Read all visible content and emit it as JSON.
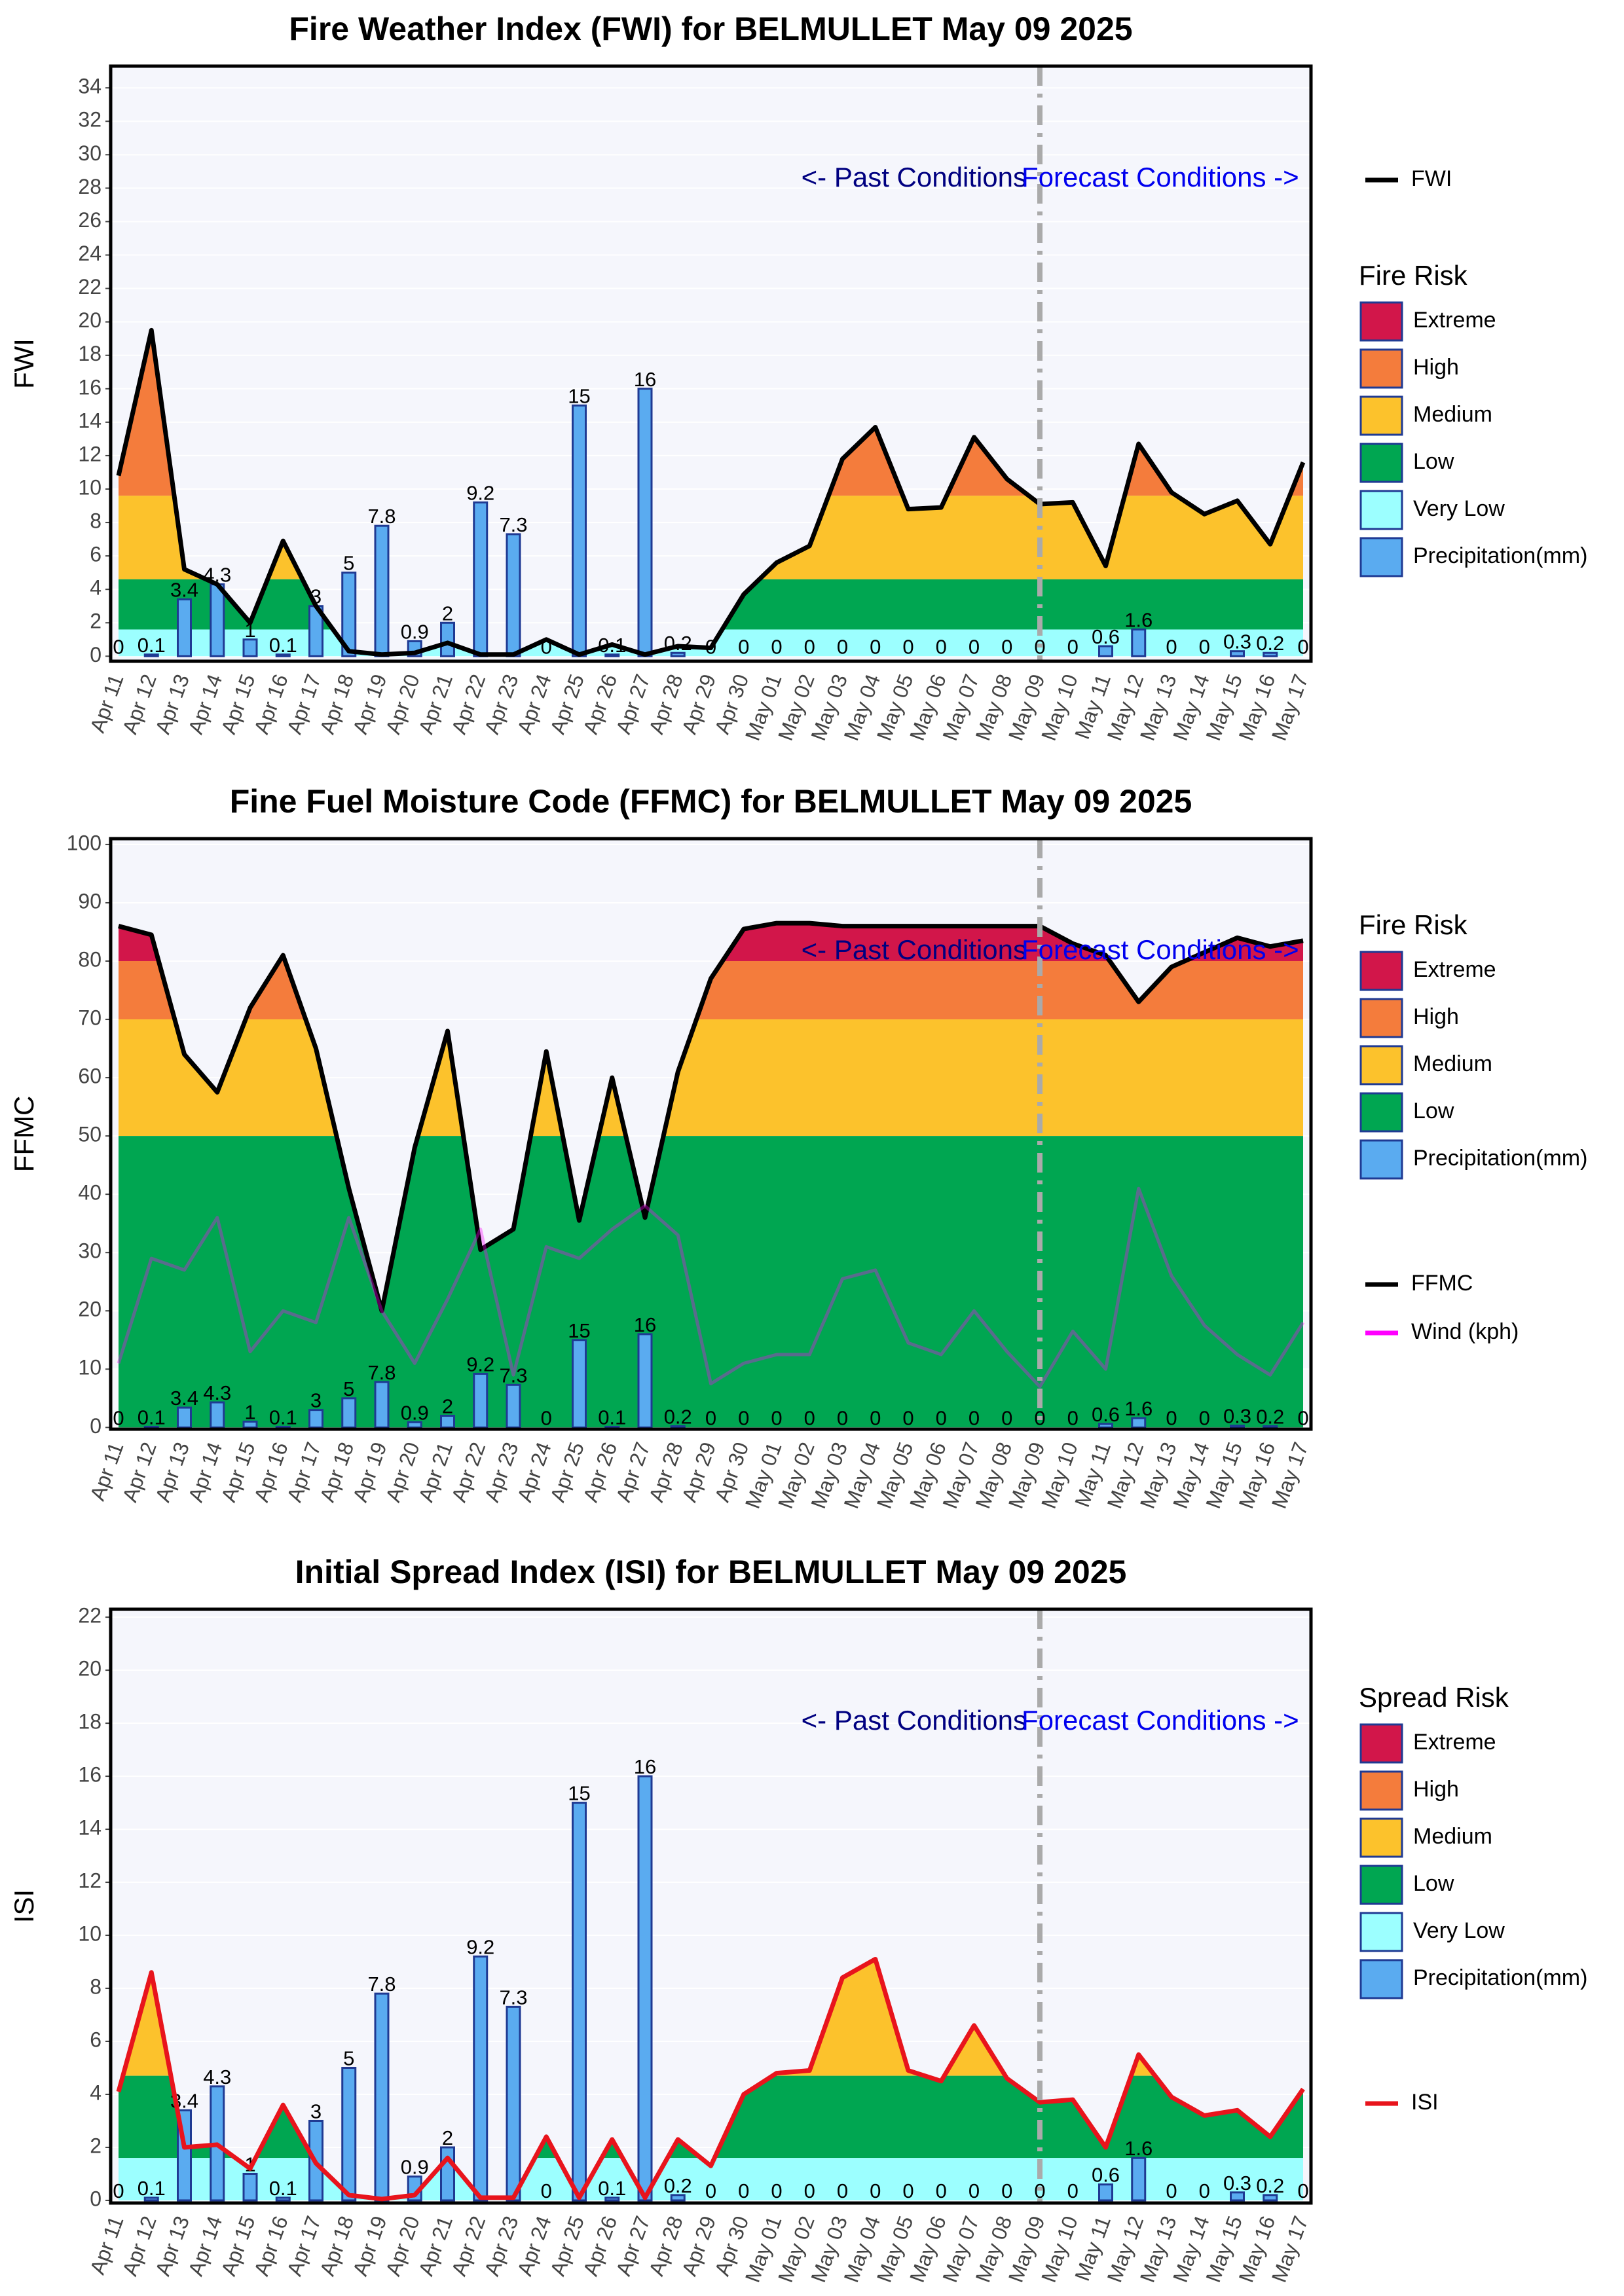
{
  "chart_data": [
    {
      "type": "combo",
      "title": "Fire Weather Index (FWI) for BELMULLET May 09 2025",
      "y_label": "FWI",
      "categories": [
        "Apr 11",
        "Apr 12",
        "Apr 13",
        "Apr 14",
        "Apr 15",
        "Apr 16",
        "Apr 17",
        "Apr 18",
        "Apr 19",
        "Apr 20",
        "Apr 21",
        "Apr 22",
        "Apr 23",
        "Apr 24",
        "Apr 25",
        "Apr 26",
        "Apr 27",
        "Apr 28",
        "Apr 29",
        "Apr 30",
        "May 01",
        "May 02",
        "May 03",
        "May 04",
        "May 05",
        "May 06",
        "May 07",
        "May 08",
        "May 09",
        "May 10",
        "May 11",
        "May 12",
        "May 13",
        "May 14",
        "May 15",
        "May 16",
        "May 17"
      ],
      "ylim": [
        -0.3,
        35.3
      ],
      "yticks": [
        0,
        2,
        4,
        6,
        8,
        10,
        12,
        14,
        16,
        18,
        20,
        22,
        24,
        26,
        28,
        30,
        32,
        34
      ],
      "grid": true,
      "background": "#f5f6fc",
      "forecast_start": "May 09",
      "annotations": [
        {
          "text": "<- Past Conditions",
          "color": "#000080"
        },
        {
          "text": "Forecast Conditions ->",
          "color": "#0000ee"
        }
      ],
      "legend_title": "Fire Risk",
      "bands": [
        {
          "name": "Extreme",
          "color": "#d2164a",
          "from": 23
        },
        {
          "name": "High",
          "color": "#f47c3c",
          "from": 9.6
        },
        {
          "name": "Medium",
          "color": "#fcc22c",
          "from": 4.6
        },
        {
          "name": "Low",
          "color": "#00a651",
          "from": 1.6
        },
        {
          "name": "Very Low",
          "color": "#9cffff",
          "from": 0
        }
      ],
      "series": [
        {
          "name": "FWI",
          "kind": "index-line",
          "color": "#000000",
          "values": [
            10.8,
            19.5,
            5.2,
            4.3,
            2.0,
            6.9,
            3.0,
            0.3,
            0.1,
            0.2,
            0.8,
            0.1,
            0.1,
            1.0,
            0.1,
            0.7,
            0.1,
            0.6,
            0.5,
            3.7,
            5.6,
            6.6,
            11.8,
            13.7,
            8.8,
            8.9,
            13.1,
            10.6,
            9.1,
            9.2,
            5.4,
            12.7,
            9.8,
            8.5,
            9.3,
            6.7,
            11.6
          ]
        },
        {
          "name": "Precipitation(mm)",
          "kind": "bar",
          "color": "#5aabf0",
          "edgecolor": "#1f3a93",
          "values": [
            0,
            0.1,
            3.4,
            4.3,
            1,
            0.1,
            3,
            5,
            7.8,
            0.9,
            2,
            9.2,
            7.3,
            0,
            15,
            0.1,
            16,
            0.2,
            0,
            0,
            0,
            0,
            0,
            0,
            0,
            0,
            0,
            0,
            0,
            0,
            0.6,
            1.6,
            0,
            0,
            0.3,
            0.2,
            0
          ]
        }
      ]
    },
    {
      "type": "combo",
      "title": "Fine Fuel Moisture Code (FFMC) for BELMULLET May 09 2025",
      "y_label": "FFMC",
      "categories": [
        "Apr 11",
        "Apr 12",
        "Apr 13",
        "Apr 14",
        "Apr 15",
        "Apr 16",
        "Apr 17",
        "Apr 18",
        "Apr 19",
        "Apr 20",
        "Apr 21",
        "Apr 22",
        "Apr 23",
        "Apr 24",
        "Apr 25",
        "Apr 26",
        "Apr 27",
        "Apr 28",
        "Apr 29",
        "Apr 30",
        "May 01",
        "May 02",
        "May 03",
        "May 04",
        "May 05",
        "May 06",
        "May 07",
        "May 08",
        "May 09",
        "May 10",
        "May 11",
        "May 12",
        "May 13",
        "May 14",
        "May 15",
        "May 16",
        "May 17"
      ],
      "ylim": [
        -0.3,
        101
      ],
      "yticks": [
        0,
        10,
        20,
        30,
        40,
        50,
        60,
        70,
        80,
        90,
        100
      ],
      "grid": true,
      "background": "#f5f6fc",
      "forecast_start": "May 09",
      "annotations": [
        {
          "text": "<- Past Conditions",
          "color": "#000080"
        },
        {
          "text": "Forecast Conditions ->",
          "color": "#0000ee"
        }
      ],
      "legend_title": "Fire Risk",
      "bands": [
        {
          "name": "Extreme",
          "color": "#d2164a",
          "from": 80
        },
        {
          "name": "High",
          "color": "#f47c3c",
          "from": 70
        },
        {
          "name": "Medium",
          "color": "#fcc22c",
          "from": 50
        },
        {
          "name": "Low",
          "color": "#00a651",
          "from": 0
        }
      ],
      "series": [
        {
          "name": "FFMC",
          "kind": "index-line",
          "color": "#000000",
          "values": [
            86,
            84.5,
            64,
            57.5,
            72,
            81,
            65,
            41,
            20,
            48,
            68,
            30.5,
            34,
            64.5,
            35.5,
            60,
            36,
            61,
            77,
            85.5,
            86.5,
            86.5,
            86,
            86,
            86,
            86,
            86,
            86,
            86,
            83,
            81,
            73,
            79,
            81.5,
            84,
            82.5,
            83.5
          ]
        },
        {
          "name": "Wind (kph)",
          "kind": "line",
          "color": "#ff00ff",
          "opacity": 0.35,
          "values": [
            11,
            29,
            27,
            36,
            13,
            20,
            18,
            36,
            20,
            11,
            22,
            34,
            9,
            31,
            29,
            34,
            38,
            33,
            7.5,
            11,
            12.5,
            12.5,
            25.5,
            27,
            14.5,
            12.5,
            20,
            13,
            7,
            16.5,
            10,
            41,
            26,
            17.5,
            12.5,
            9,
            18
          ]
        },
        {
          "name": "Precipitation(mm)",
          "kind": "bar",
          "color": "#5aabf0",
          "edgecolor": "#1f3a93",
          "values": [
            0,
            0.1,
            3.4,
            4.3,
            1,
            0.1,
            3,
            5,
            7.8,
            0.9,
            2,
            9.2,
            7.3,
            0,
            15,
            0.1,
            16,
            0.2,
            0,
            0,
            0,
            0,
            0,
            0,
            0,
            0,
            0,
            0,
            0,
            0,
            0.6,
            1.6,
            0,
            0,
            0.3,
            0.2,
            0
          ]
        }
      ]
    },
    {
      "type": "combo",
      "title": "Initial Spread Index (ISI) for BELMULLET May 09 2025",
      "y_label": "ISI",
      "categories": [
        "Apr 11",
        "Apr 12",
        "Apr 13",
        "Apr 14",
        "Apr 15",
        "Apr 16",
        "Apr 17",
        "Apr 18",
        "Apr 19",
        "Apr 20",
        "Apr 21",
        "Apr 22",
        "Apr 23",
        "Apr 24",
        "Apr 25",
        "Apr 26",
        "Apr 27",
        "Apr 28",
        "Apr 29",
        "Apr 30",
        "May 01",
        "May 02",
        "May 03",
        "May 04",
        "May 05",
        "May 06",
        "May 07",
        "May 08",
        "May 09",
        "May 10",
        "May 11",
        "May 12",
        "May 13",
        "May 14",
        "May 15",
        "May 16",
        "May 17"
      ],
      "ylim": [
        -0.1,
        22.3
      ],
      "yticks": [
        0,
        2,
        4,
        6,
        8,
        10,
        12,
        14,
        16,
        18,
        20,
        22
      ],
      "grid": true,
      "background": "#f5f6fc",
      "forecast_start": "May 09",
      "annotations": [
        {
          "text": "<- Past Conditions",
          "color": "#000080"
        },
        {
          "text": "Forecast Conditions ->",
          "color": "#0000ee"
        }
      ],
      "legend_title": "Spread Risk",
      "bands": [
        {
          "name": "Extreme",
          "color": "#d2164a",
          "from": 15
        },
        {
          "name": "High",
          "color": "#f47c3c",
          "from": 10
        },
        {
          "name": "Medium",
          "color": "#fcc22c",
          "from": 4.7
        },
        {
          "name": "Low",
          "color": "#00a651",
          "from": 1.6
        },
        {
          "name": "Very Low",
          "color": "#9cffff",
          "from": 0
        }
      ],
      "series": [
        {
          "name": "ISI",
          "kind": "index-line",
          "color": "#e8141c",
          "values": [
            4.1,
            8.6,
            2.0,
            2.1,
            1.2,
            3.6,
            1.4,
            0.2,
            0.05,
            0.2,
            1.6,
            0.1,
            0.1,
            2.4,
            0.1,
            2.3,
            0.1,
            2.3,
            1.3,
            4.0,
            4.8,
            4.9,
            8.4,
            9.1,
            4.9,
            4.5,
            6.6,
            4.6,
            3.7,
            3.8,
            2.0,
            5.5,
            3.9,
            3.2,
            3.4,
            2.4,
            4.2
          ]
        },
        {
          "name": "Precipitation(mm)",
          "kind": "bar",
          "color": "#5aabf0",
          "edgecolor": "#1f3a93",
          "values": [
            0,
            0.1,
            3.4,
            4.3,
            1,
            0.1,
            3,
            5,
            7.8,
            0.9,
            2,
            9.2,
            7.3,
            0,
            15,
            0.1,
            16,
            0.2,
            0,
            0,
            0,
            0,
            0,
            0,
            0,
            0,
            0,
            0,
            0,
            0,
            0.6,
            1.6,
            0,
            0,
            0.3,
            0.2,
            0
          ]
        }
      ]
    }
  ]
}
